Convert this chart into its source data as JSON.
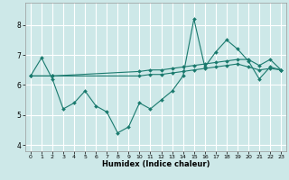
{
  "xlabel": "Humidex (Indice chaleur)",
  "bg_color": "#cde8e8",
  "line_color": "#1a7a6e",
  "grid_color": "#ffffff",
  "xlim": [
    -0.5,
    23.5
  ],
  "ylim": [
    3.8,
    8.75
  ],
  "yticks": [
    4,
    5,
    6,
    7,
    8
  ],
  "xticks": [
    0,
    1,
    2,
    3,
    4,
    5,
    6,
    7,
    8,
    9,
    10,
    11,
    12,
    13,
    14,
    15,
    16,
    17,
    18,
    19,
    20,
    21,
    22,
    23
  ],
  "xtick_labels": [
    "0",
    "1",
    "2",
    "3",
    "4",
    "5",
    "6",
    "7",
    "8",
    "9",
    "10",
    "11",
    "12",
    "13",
    "14",
    "15",
    "16",
    "17",
    "18",
    "19",
    "20",
    "21",
    "22",
    "23"
  ],
  "series1_x": [
    0,
    1,
    2,
    3,
    4,
    5,
    6,
    7,
    8,
    9,
    10,
    11,
    12,
    13,
    14,
    15,
    16,
    17,
    18,
    19,
    20,
    21,
    22,
    23
  ],
  "series1_y": [
    6.3,
    6.9,
    6.2,
    5.2,
    5.4,
    5.8,
    5.3,
    5.1,
    4.4,
    4.6,
    5.4,
    5.2,
    5.5,
    5.8,
    6.3,
    8.2,
    6.6,
    7.1,
    7.5,
    7.2,
    6.8,
    6.2,
    6.6,
    6.5
  ],
  "series2_x": [
    0,
    2,
    10,
    11,
    12,
    13,
    14,
    15,
    16,
    17,
    18,
    19,
    20,
    21,
    22,
    23
  ],
  "series2_y": [
    6.3,
    6.3,
    6.45,
    6.5,
    6.5,
    6.55,
    6.6,
    6.65,
    6.7,
    6.75,
    6.8,
    6.85,
    6.85,
    6.65,
    6.85,
    6.5
  ],
  "series3_x": [
    0,
    2,
    10,
    11,
    12,
    13,
    14,
    15,
    16,
    17,
    18,
    19,
    20,
    21,
    22,
    23
  ],
  "series3_y": [
    6.3,
    6.3,
    6.3,
    6.35,
    6.35,
    6.4,
    6.45,
    6.5,
    6.55,
    6.6,
    6.65,
    6.7,
    6.6,
    6.5,
    6.55,
    6.5
  ]
}
